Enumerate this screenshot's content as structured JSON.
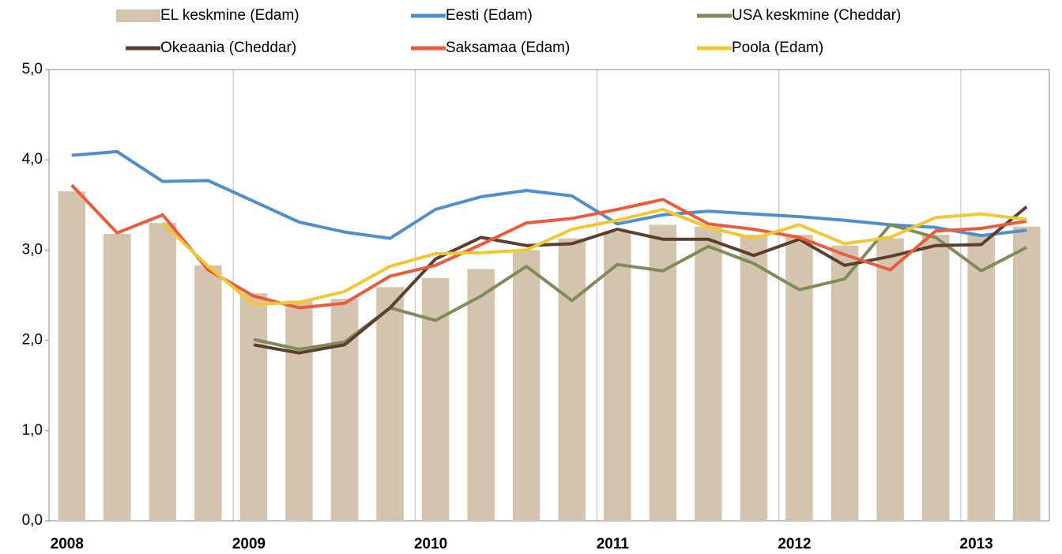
{
  "chart_data": {
    "type": "combo",
    "categories": [
      "2008",
      null,
      null,
      null,
      "2009",
      null,
      null,
      null,
      "2010",
      null,
      null,
      null,
      "2011",
      null,
      null,
      null,
      "2012",
      null,
      null,
      null,
      "2013",
      null
    ],
    "series": [
      {
        "name": "EL keskmine (Edam)",
        "type": "bar",
        "color": "#d5c4ad",
        "values": [
          3.65,
          3.18,
          3.3,
          2.83,
          2.52,
          2.44,
          2.46,
          2.59,
          2.69,
          2.79,
          3.0,
          3.13,
          3.2,
          3.28,
          3.26,
          3.17,
          3.17,
          3.05,
          3.13,
          3.17,
          3.17,
          3.26
        ]
      },
      {
        "name": "Eesti (Edam)",
        "type": "line",
        "color": "#4f8fcc",
        "values": [
          4.05,
          4.09,
          3.76,
          3.77,
          3.54,
          3.31,
          3.2,
          3.13,
          3.45,
          3.59,
          3.66,
          3.6,
          3.29,
          3.39,
          3.43,
          3.4,
          3.37,
          3.33,
          3.28,
          3.25,
          3.16,
          3.22
        ]
      },
      {
        "name": "USA keskmine (Cheddar)",
        "type": "line",
        "color": "#7f8c5a",
        "values": [
          null,
          null,
          null,
          null,
          2.01,
          1.9,
          1.98,
          2.36,
          2.22,
          2.49,
          2.82,
          2.44,
          2.84,
          2.77,
          3.04,
          2.85,
          2.56,
          2.68,
          3.28,
          3.14,
          2.77,
          3.03
        ]
      },
      {
        "name": "Okeaania (Cheddar)",
        "type": "line",
        "color": "#5a3f2e",
        "values": [
          null,
          null,
          null,
          null,
          1.95,
          1.86,
          1.95,
          2.36,
          2.9,
          3.14,
          3.05,
          3.07,
          3.23,
          3.12,
          3.12,
          2.94,
          3.12,
          2.83,
          2.93,
          3.05,
          3.06,
          3.48
        ]
      },
      {
        "name": "Saksamaa (Edam)",
        "type": "line",
        "color": "#ee5a3c",
        "values": [
          3.72,
          3.19,
          3.39,
          2.78,
          2.49,
          2.36,
          2.41,
          2.71,
          2.83,
          3.06,
          3.3,
          3.35,
          3.45,
          3.56,
          3.29,
          3.23,
          3.14,
          2.95,
          2.78,
          3.21,
          3.24,
          3.32
        ]
      },
      {
        "name": "Poola (Edam)",
        "type": "line",
        "color": "#f0c832",
        "values": [
          null,
          null,
          3.3,
          2.82,
          2.4,
          2.42,
          2.54,
          2.82,
          2.96,
          2.97,
          3.0,
          3.23,
          3.33,
          3.45,
          3.25,
          3.13,
          3.28,
          3.07,
          3.14,
          3.36,
          3.4,
          3.34
        ]
      }
    ],
    "ylim": [
      0,
      5
    ],
    "yticks": [
      {
        "value": 0,
        "label": "0,0"
      },
      {
        "value": 1,
        "label": "1,0"
      },
      {
        "value": 2,
        "label": "2,0"
      },
      {
        "value": 3,
        "label": "3,0"
      },
      {
        "value": 4,
        "label": "4,0"
      },
      {
        "value": 5,
        "label": "5,0"
      }
    ],
    "vertical_grid": true,
    "legend": "top"
  }
}
